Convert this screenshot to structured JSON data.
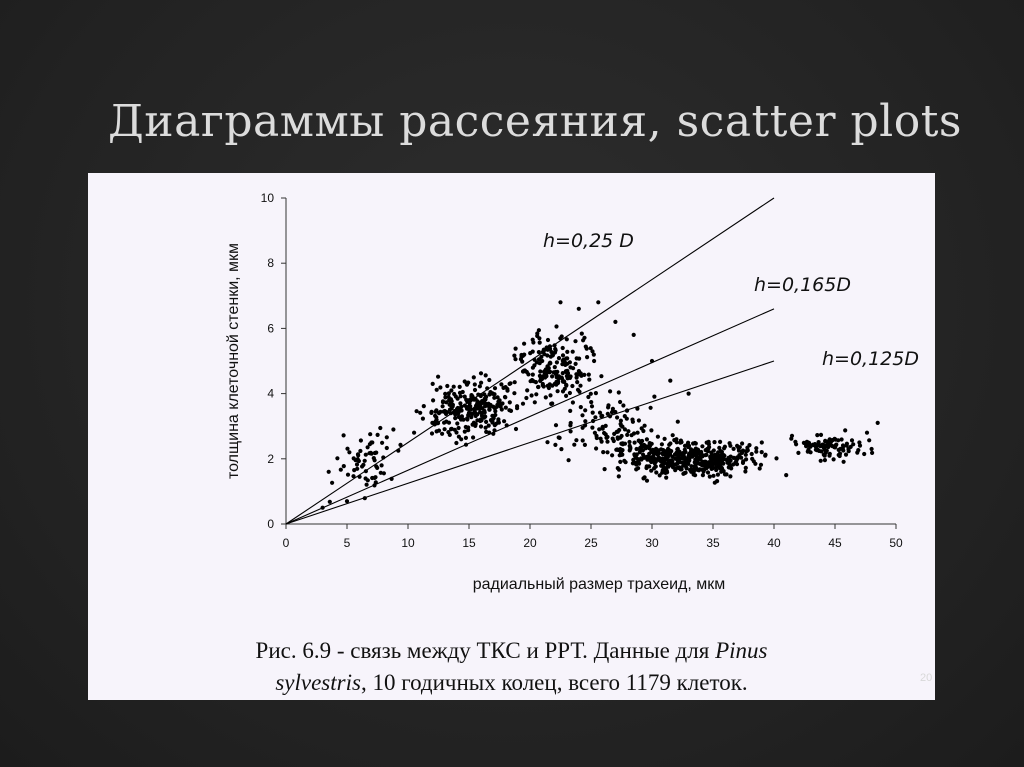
{
  "slide": {
    "title": "Диаграммы рассеяния, scatter plots",
    "page_number": "20",
    "caption": {
      "line1_prefix": "Рис. 6.9 - связь между ТКС и РРТ. Данные для ",
      "genus": "Pinus",
      "species": "sylvestris",
      "line2_suffix": ", 10 годичных колец, всего 1179 клеток."
    }
  },
  "chart_data": {
    "type": "scatter",
    "xlabel": "радиальный размер трахеид, мкм",
    "ylabel": "толщина клеточной стенки, мкм",
    "xlim": [
      0,
      50
    ],
    "ylim": [
      0,
      10
    ],
    "x_ticks": [
      0,
      5,
      10,
      15,
      20,
      25,
      30,
      35,
      40,
      45,
      50
    ],
    "y_ticks": [
      0,
      2,
      4,
      6,
      8,
      10
    ],
    "grid": false,
    "legend": "none",
    "point_count": 1179,
    "reference_lines": [
      {
        "label": "h=0,25 D",
        "slope": 0.25,
        "x_end": 40
      },
      {
        "label": "h=0,165D",
        "slope": 0.165,
        "x_end": 40
      },
      {
        "label": "h=0,125D",
        "slope": 0.125,
        "x_end": 40
      }
    ],
    "clusters": [
      {
        "x_range": [
          3,
          10
        ],
        "y_range": [
          0.5,
          3.2
        ],
        "n": 60
      },
      {
        "x_range": [
          10,
          20
        ],
        "y_range": [
          2.2,
          4.8
        ],
        "n": 250
      },
      {
        "x_range": [
          17,
          27
        ],
        "y_range": [
          3.2,
          6.3
        ],
        "n": 200
      },
      {
        "x_range": [
          20,
          33
        ],
        "y_range": [
          1.6,
          4.2
        ],
        "n": 120
      },
      {
        "x_range": [
          25,
          41
        ],
        "y_range": [
          1.2,
          2.8
        ],
        "n": 450
      },
      {
        "x_range": [
          40,
          49
        ],
        "y_range": [
          1.8,
          3.0
        ],
        "n": 99
      }
    ],
    "points_sample": [
      [
        3.0,
        0.5
      ],
      [
        5.0,
        0.7
      ],
      [
        3.5,
        1.6
      ],
      [
        5.2,
        2.2
      ],
      [
        7.0,
        2.5
      ],
      [
        8.8,
        2.9
      ],
      [
        10.5,
        2.8
      ],
      [
        12.0,
        3.1
      ],
      [
        13.5,
        3.4
      ],
      [
        15.0,
        3.6
      ],
      [
        16.4,
        3.9
      ],
      [
        18.0,
        4.2
      ],
      [
        19.5,
        4.7
      ],
      [
        21.0,
        5.0
      ],
      [
        22.5,
        6.8
      ],
      [
        24.0,
        6.6
      ],
      [
        25.6,
        6.8
      ],
      [
        27.0,
        6.2
      ],
      [
        28.5,
        5.8
      ],
      [
        30.0,
        5.0
      ],
      [
        31.5,
        4.4
      ],
      [
        33.0,
        4.0
      ],
      [
        29.0,
        2.2
      ],
      [
        31.0,
        1.9
      ],
      [
        33.0,
        2.4
      ],
      [
        35.0,
        2.1
      ],
      [
        37.0,
        2.0
      ],
      [
        39.0,
        2.5
      ],
      [
        41.0,
        1.5
      ],
      [
        43.0,
        2.2
      ],
      [
        45.0,
        2.6
      ],
      [
        47.0,
        2.5
      ],
      [
        48.5,
        3.1
      ],
      [
        48.0,
        2.3
      ]
    ]
  }
}
